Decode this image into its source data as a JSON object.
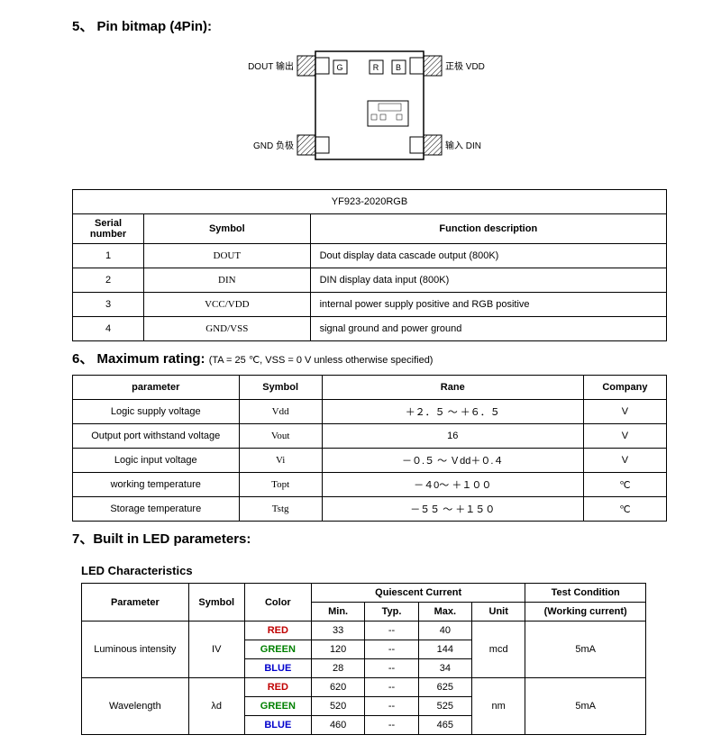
{
  "section5": {
    "title": "5、 Pin bitmap (4Pin):",
    "diagram": {
      "top_left_label": "DOUT 输出",
      "top_right_label": "正极 VDD",
      "bottom_left_label": "GND 负极",
      "bottom_right_label": "输入 DIN",
      "die_labels": [
        "G",
        "R",
        "B"
      ]
    }
  },
  "pinTable": {
    "part_number": "YF923-2020RGB",
    "headers": {
      "serial": "Serial\nnumber",
      "symbol": "Symbol",
      "func": "Function description"
    },
    "rows": [
      {
        "n": "1",
        "sym": "DOUT",
        "desc": "Dout display data cascade output (800K)"
      },
      {
        "n": "2",
        "sym": "DIN",
        "desc": "DIN display data input (800K)"
      },
      {
        "n": "3",
        "sym": "VCC/VDD",
        "desc": "internal power supply positive and RGB positive"
      },
      {
        "n": "4",
        "sym": "GND/VSS",
        "desc": "signal ground and power ground"
      }
    ]
  },
  "section6": {
    "title": "6、 Maximum rating:",
    "note": "(TA = 25 ℃, VSS = 0 V unless otherwise specified)",
    "headers": {
      "param": "parameter",
      "sym": "Symbol",
      "range": "Rane",
      "comp": "Company"
    },
    "rows": [
      {
        "p": "Logic supply voltage",
        "s": "Vdd",
        "r": "＋２．５ ～ ＋６．５",
        "c": "V"
      },
      {
        "p": "Output port withstand voltage",
        "s": "Vout",
        "r": "16",
        "c": "V"
      },
      {
        "p": "Logic input voltage",
        "s": "Vi",
        "r": "－０.５ ～ Ｖdd＋０.４",
        "c": "V"
      },
      {
        "p": "working temperature",
        "s": "Topt",
        "r": "－４0～ ＋１００",
        "c": "℃"
      },
      {
        "p": "Storage temperature",
        "s": "Tstg",
        "r": "－５５ ～ ＋１５０",
        "c": "℃"
      }
    ]
  },
  "section7": {
    "title": "7、Built in LED parameters:",
    "led_title": "LED Characteristics",
    "headers": {
      "param": "Parameter",
      "sym": "Symbol",
      "color": "Color",
      "qc": "Quiescent Current",
      "min": "Min.",
      "typ": "Typ.",
      "max": "Max.",
      "unit": "Unit",
      "cond": "Test Condition",
      "cond2": "(Working current)"
    },
    "luminous": {
      "param": "Luminous intensity",
      "sym": "IV",
      "rows": [
        {
          "c": "RED",
          "cls": "red",
          "min": "33",
          "typ": "--",
          "max": "40"
        },
        {
          "c": "GREEN",
          "cls": "green",
          "min": "120",
          "typ": "--",
          "max": "144"
        },
        {
          "c": "BLUE",
          "cls": "blue",
          "min": "28",
          "typ": "--",
          "max": "34"
        }
      ],
      "unit": "mcd",
      "cond": "5mA"
    },
    "wavelength": {
      "param": "Wavelength",
      "sym": "λd",
      "rows": [
        {
          "c": "RED",
          "cls": "red",
          "min": "620",
          "typ": "--",
          "max": "625"
        },
        {
          "c": "GREEN",
          "cls": "green",
          "min": "520",
          "typ": "--",
          "max": "525"
        },
        {
          "c": "BLUE",
          "cls": "blue",
          "min": "460",
          "typ": "--",
          "max": "465"
        }
      ],
      "unit": "nm",
      "cond": "5mA"
    }
  }
}
